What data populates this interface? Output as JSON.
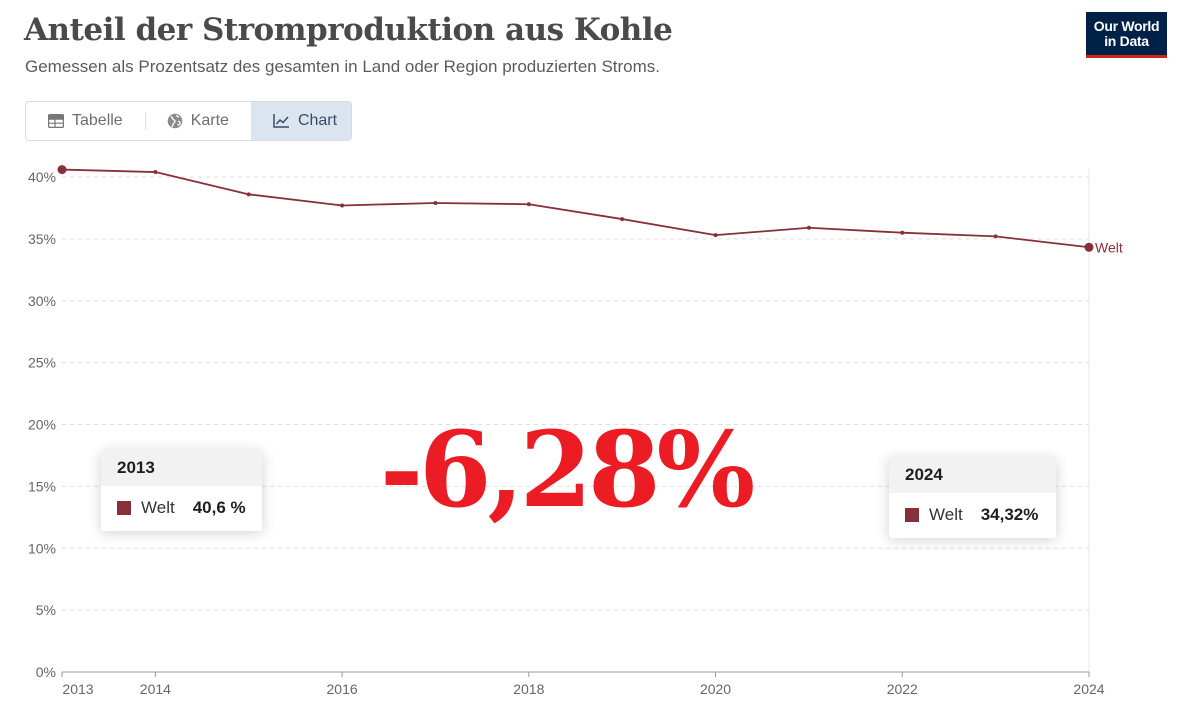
{
  "header": {
    "title": "Anteil der Stromproduktion aus Kohle",
    "subtitle": "Gemessen als Prozentsatz des gesamten in Land oder Region produzierten Stroms.",
    "logo_line1": "Our World",
    "logo_line2": "in Data"
  },
  "tabs": [
    {
      "label": "Tabelle",
      "icon": "table-icon"
    },
    {
      "label": "Karte",
      "icon": "globe-icon"
    },
    {
      "label": "Chart",
      "icon": "line-chart-icon",
      "active": true
    }
  ],
  "chart_data": {
    "type": "line",
    "x": [
      2013,
      2014,
      2015,
      2016,
      2017,
      2018,
      2019,
      2020,
      2021,
      2022,
      2023,
      2024
    ],
    "series": [
      {
        "name": "Welt",
        "color": "#883039",
        "values": [
          40.6,
          40.4,
          38.6,
          37.7,
          37.9,
          37.8,
          36.6,
          35.3,
          35.9,
          35.5,
          35.2,
          34.32
        ]
      }
    ],
    "xlabel": "",
    "ylabel": "",
    "ylim": [
      0,
      40
    ],
    "yticks": [
      0,
      5,
      10,
      15,
      20,
      25,
      30,
      35,
      40
    ],
    "ytick_labels": [
      "0%",
      "5%",
      "10%",
      "15%",
      "20%",
      "25%",
      "30%",
      "35%",
      "40%"
    ],
    "xticks": [
      2013,
      2014,
      2016,
      2018,
      2020,
      2022,
      2024
    ],
    "xtick_labels": [
      "2013",
      "2014",
      "2016",
      "2018",
      "2020",
      "2022",
      "2024"
    ],
    "grid": "horizontal-dashed",
    "series_label_placement": "right-end"
  },
  "tooltips": {
    "start": {
      "year": "2013",
      "name": "Welt",
      "value": "40,6 %"
    },
    "end": {
      "year": "2024",
      "name": "Welt",
      "value": "34,32%"
    }
  },
  "annotation": {
    "change": "-6,28%"
  }
}
